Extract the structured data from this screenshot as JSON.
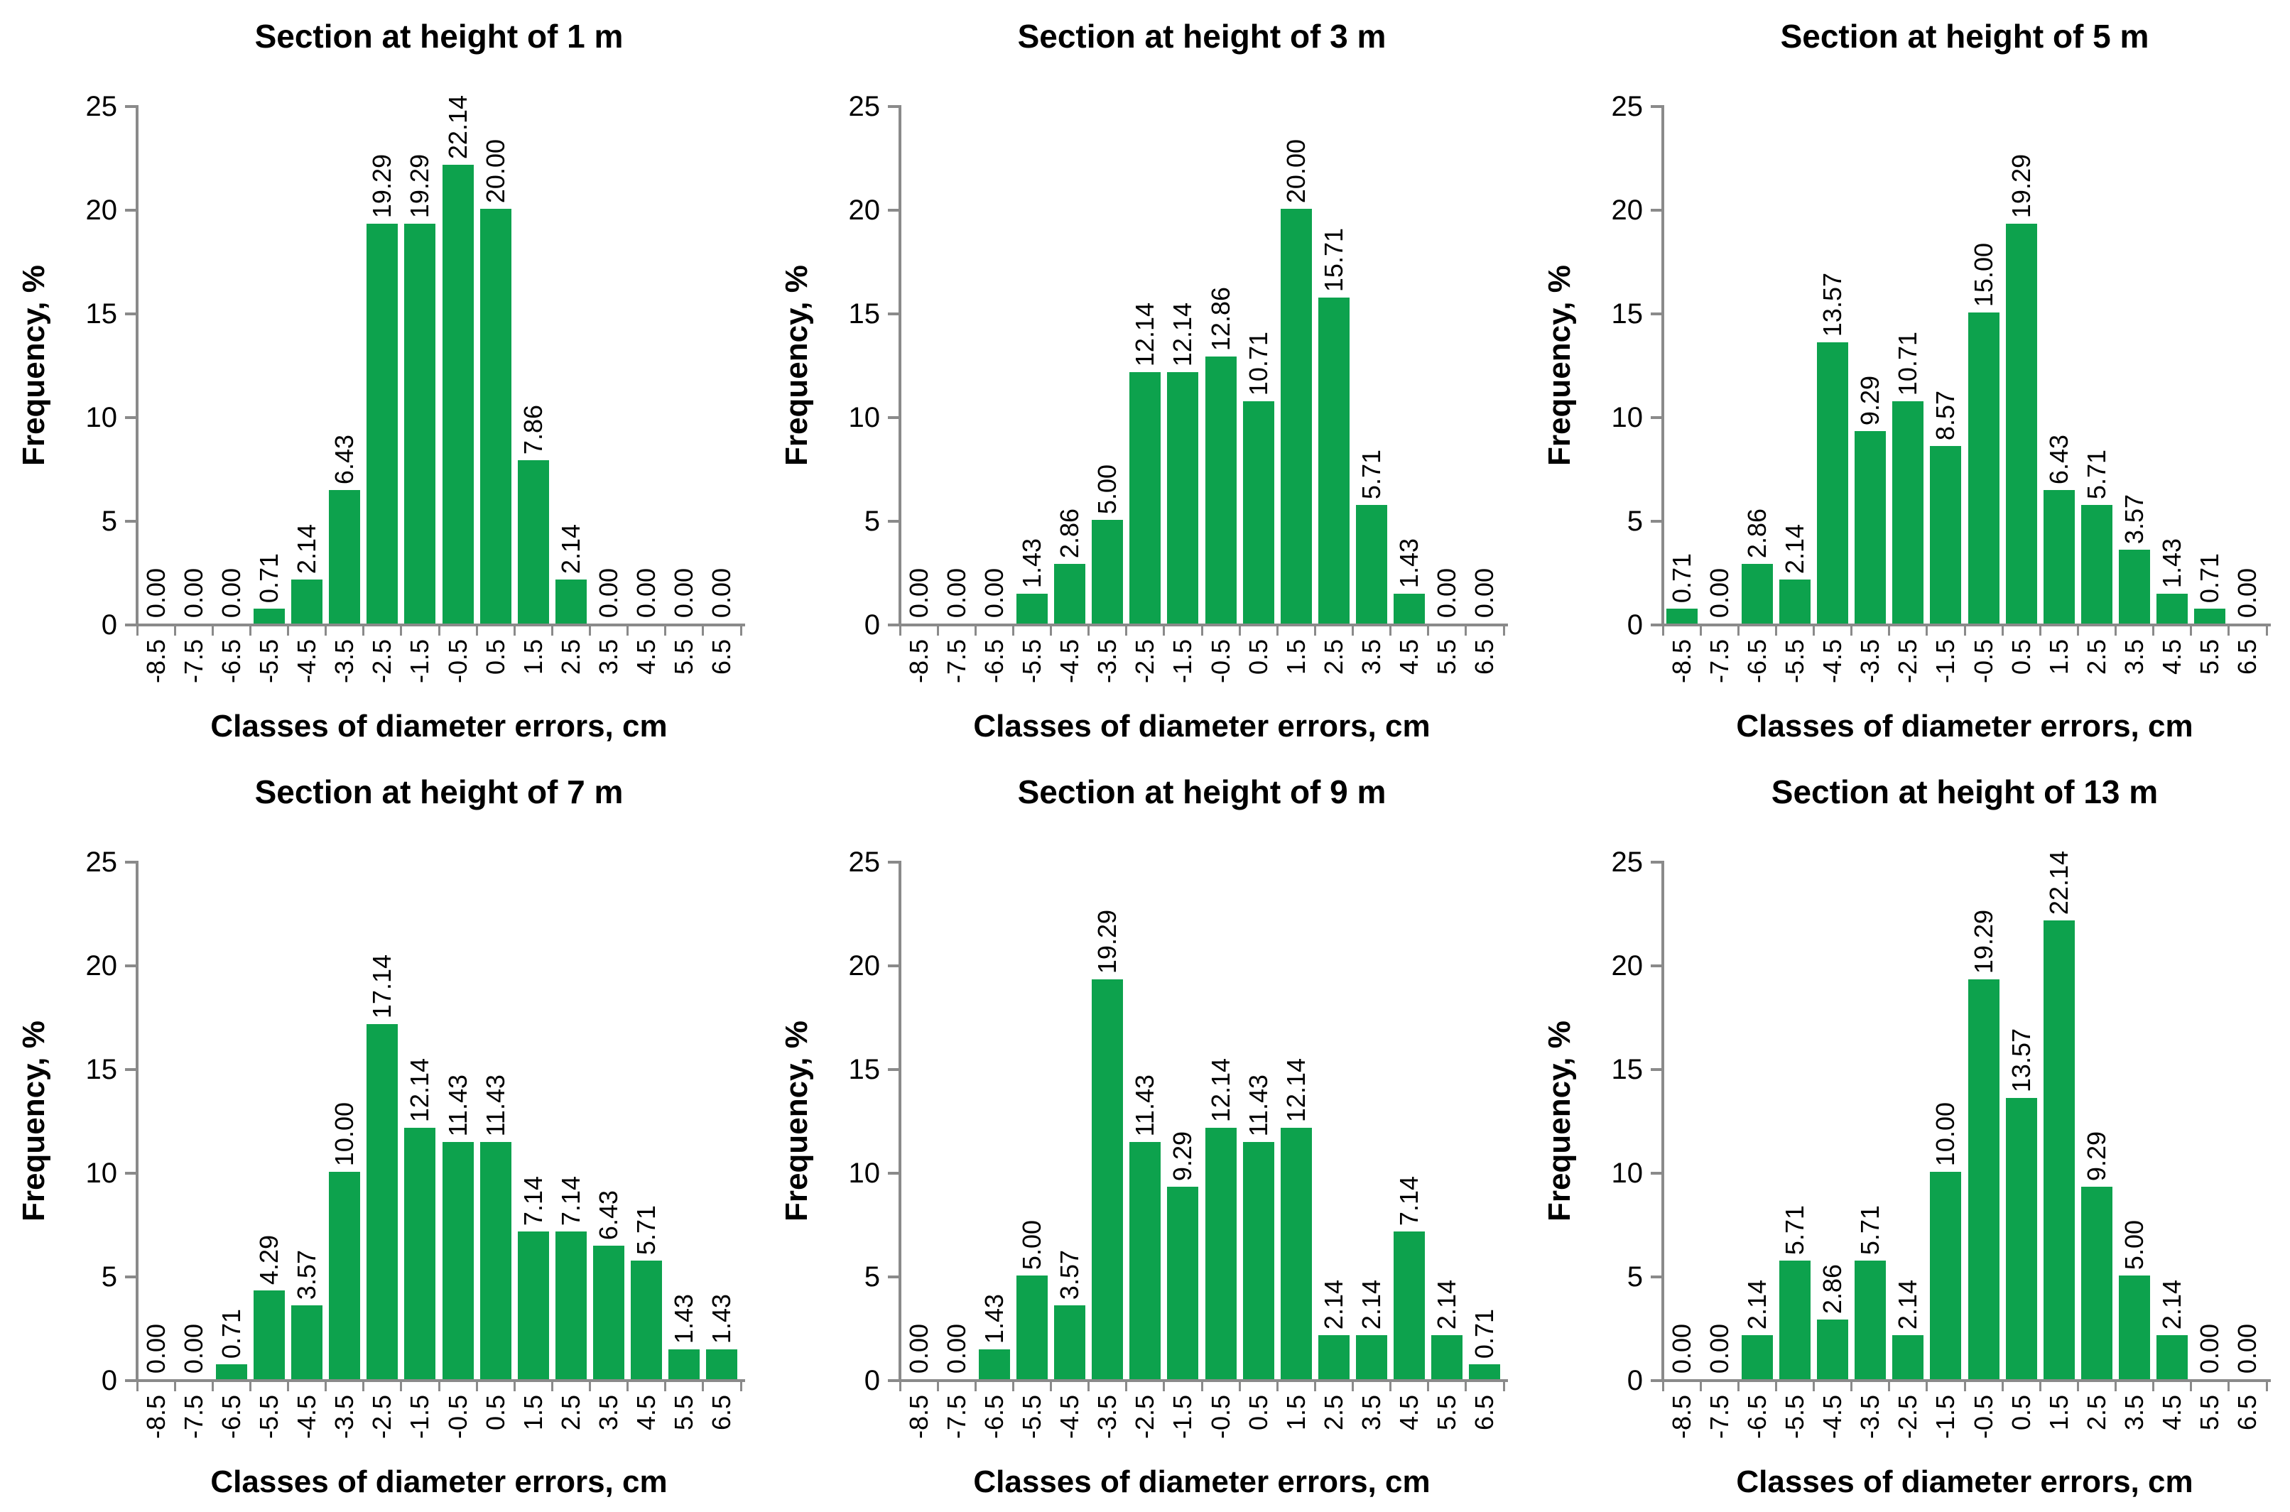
{
  "page": {
    "background": "#ffffff",
    "layout": "2 rows x 3 columns of bar charts"
  },
  "palette": {
    "bar_green": "#0da24d",
    "axis_gray": "#8a8a8a",
    "text_black": "#000000"
  },
  "chart_data": [
    {
      "type": "bar",
      "title": "Section at height of 1 m",
      "xlabel": "Classes of diameter errors, cm",
      "ylabel": "Frequency, %",
      "ylim": [
        0,
        25
      ],
      "yticks": [
        0,
        5,
        10,
        15,
        20,
        25
      ],
      "grid": "off",
      "legend": "none",
      "categories": [
        "-8.5",
        "-7.5",
        "-6.5",
        "-5.5",
        "-4.5",
        "-3.5",
        "-2.5",
        "-1.5",
        "-0.5",
        "0.5",
        "1.5",
        "2.5",
        "3.5",
        "4.5",
        "5.5",
        "6.5"
      ],
      "values": [
        0.0,
        0.0,
        0.0,
        0.71,
        2.14,
        6.43,
        19.29,
        19.29,
        22.14,
        20.0,
        7.86,
        2.14,
        0.0,
        0.0,
        0.0,
        0.0
      ],
      "labels": [
        "0.00",
        "0.00",
        "0.00",
        "0.71",
        "2.14",
        "6.43",
        "19.29",
        "19.29",
        "22.14",
        "20.00",
        "7.86",
        "2.14",
        "0.00",
        "0.00",
        "0.00",
        "0.00"
      ]
    },
    {
      "type": "bar",
      "title": "Section at height of 3 m",
      "xlabel": "Classes of diameter errors, cm",
      "ylabel": "Frequency, %",
      "ylim": [
        0,
        25
      ],
      "yticks": [
        0,
        5,
        10,
        15,
        20,
        25
      ],
      "grid": "off",
      "legend": "none",
      "categories": [
        "-8.5",
        "-7.5",
        "-6.5",
        "-5.5",
        "-4.5",
        "-3.5",
        "-2.5",
        "-1.5",
        "-0.5",
        "0.5",
        "1.5",
        "2.5",
        "3.5",
        "4.5",
        "5.5",
        "6.5"
      ],
      "values": [
        0.0,
        0.0,
        0.0,
        1.43,
        2.86,
        5.0,
        12.14,
        12.14,
        12.86,
        10.71,
        20.0,
        15.71,
        5.71,
        1.43,
        0.0,
        0.0
      ],
      "labels": [
        "0.00",
        "0.00",
        "0.00",
        "1.43",
        "2.86",
        "5.00",
        "12.14",
        "12.14",
        "12.86",
        "10.71",
        "20.00",
        "15.71",
        "5.71",
        "1.43",
        "0.00",
        "0.00"
      ]
    },
    {
      "type": "bar",
      "title": "Section at height of 5 m",
      "xlabel": "Classes of diameter errors, cm",
      "ylabel": "Frequency, %",
      "ylim": [
        0,
        25
      ],
      "yticks": [
        0,
        5,
        10,
        15,
        20,
        25
      ],
      "grid": "off",
      "legend": "none",
      "categories": [
        "-8.5",
        "-7.5",
        "-6.5",
        "-5.5",
        "-4.5",
        "-3.5",
        "-2.5",
        "-1.5",
        "-0.5",
        "0.5",
        "1.5",
        "2.5",
        "3.5",
        "4.5",
        "5.5",
        "6.5"
      ],
      "values": [
        0.71,
        0.0,
        2.86,
        2.14,
        13.57,
        9.29,
        10.71,
        8.57,
        15.0,
        19.29,
        6.43,
        5.71,
        3.57,
        1.43,
        0.71,
        0.0
      ],
      "labels": [
        "0.71",
        "0.00",
        "2.86",
        "2.14",
        "13.57",
        "9.29",
        "10.71",
        "8.57",
        "15.00",
        "19.29",
        "6.43",
        "5.71",
        "3.57",
        "1.43",
        "0.71",
        "0.00"
      ]
    },
    {
      "type": "bar",
      "title": "Section at height of 7 m",
      "xlabel": "Classes of diameter errors, cm",
      "ylabel": "Frequency, %",
      "ylim": [
        0,
        25
      ],
      "yticks": [
        0,
        5,
        10,
        15,
        20,
        25
      ],
      "grid": "off",
      "legend": "none",
      "categories": [
        "-8.5",
        "-7.5",
        "-6.5",
        "-5.5",
        "-4.5",
        "-3.5",
        "-2.5",
        "-1.5",
        "-0.5",
        "0.5",
        "1.5",
        "2.5",
        "3.5",
        "4.5",
        "5.5",
        "6.5"
      ],
      "values": [
        0.0,
        0.0,
        0.71,
        4.29,
        3.57,
        10.0,
        17.14,
        12.14,
        11.43,
        11.43,
        7.14,
        7.14,
        6.43,
        5.71,
        1.43,
        1.43
      ],
      "labels": [
        "0.00",
        "0.00",
        "0.71",
        "4.29",
        "3.57",
        "10.00",
        "17.14",
        "12.14",
        "11.43",
        "11.43",
        "7.14",
        "7.14",
        "6.43",
        "5.71",
        "1.43",
        "1.43"
      ]
    },
    {
      "type": "bar",
      "title": "Section at height of 9 m",
      "xlabel": "Classes of diameter errors, cm",
      "ylabel": "Frequency, %",
      "ylim": [
        0,
        25
      ],
      "yticks": [
        0,
        5,
        10,
        15,
        20,
        25
      ],
      "grid": "off",
      "legend": "none",
      "categories": [
        "-8.5",
        "-7.5",
        "-6.5",
        "-5.5",
        "-4.5",
        "-3.5",
        "-2.5",
        "-1.5",
        "-0.5",
        "0.5",
        "1.5",
        "2.5",
        "3.5",
        "4.5",
        "5.5",
        "6.5"
      ],
      "values": [
        0.0,
        0.0,
        1.43,
        5.0,
        3.57,
        19.29,
        11.43,
        9.29,
        12.14,
        11.43,
        12.14,
        2.14,
        2.14,
        7.14,
        2.14,
        0.71
      ],
      "labels": [
        "0.00",
        "0.00",
        "1.43",
        "5.00",
        "3.57",
        "19.29",
        "11.43",
        "9.29",
        "12.14",
        "11.43",
        "12.14",
        "2.14",
        "2.14",
        "7.14",
        "2.14",
        "0.71"
      ]
    },
    {
      "type": "bar",
      "title": "Section at height of 13 m",
      "xlabel": "Classes of diameter errors, cm",
      "ylabel": "Frequency, %",
      "ylim": [
        0,
        25
      ],
      "yticks": [
        0,
        5,
        10,
        15,
        20,
        25
      ],
      "grid": "off",
      "legend": "none",
      "categories": [
        "-8.5",
        "-7.5",
        "-6.5",
        "-5.5",
        "-4.5",
        "-3.5",
        "-2.5",
        "-1.5",
        "-0.5",
        "0.5",
        "1.5",
        "2.5",
        "3.5",
        "4.5",
        "5.5",
        "6.5"
      ],
      "values": [
        0.0,
        0.0,
        2.14,
        5.71,
        2.86,
        5.71,
        2.14,
        10.0,
        19.29,
        13.57,
        22.14,
        9.29,
        5.0,
        2.14,
        0.0,
        0.0
      ],
      "labels": [
        "0.00",
        "0.00",
        "2.14",
        "5.71",
        "2.86",
        "5.71",
        "2.14",
        "10.00",
        "19.29",
        "13.57",
        "22.14",
        "9.29",
        "5.00",
        "2.14",
        "0.00",
        "0.00"
      ]
    }
  ]
}
